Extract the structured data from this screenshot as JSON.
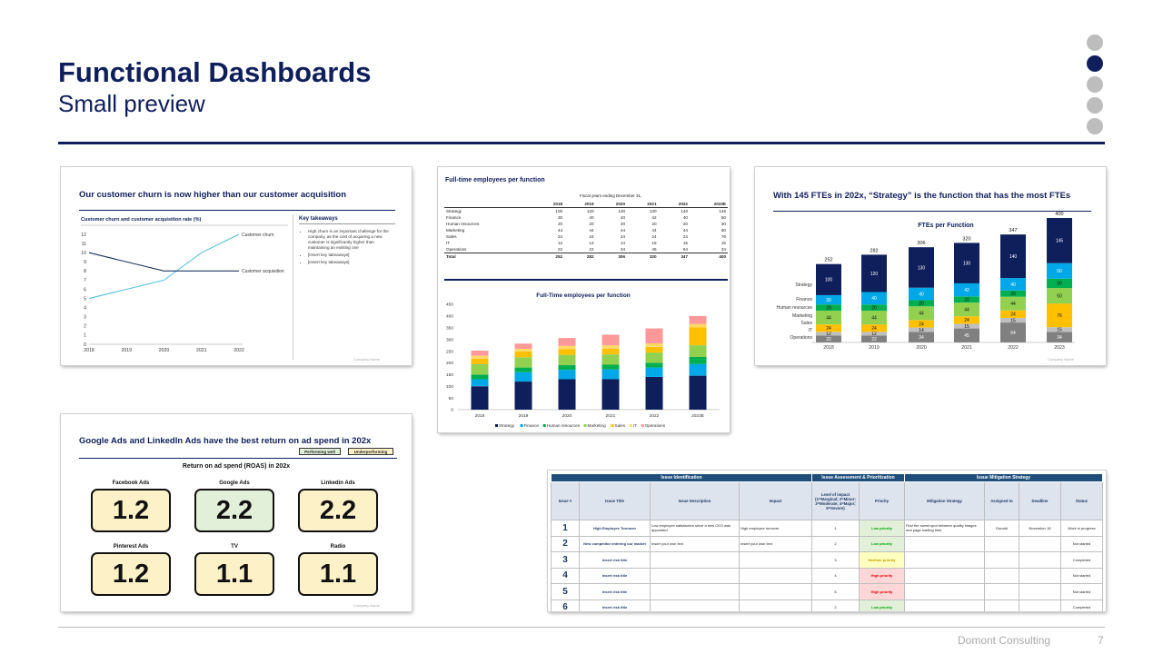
{
  "slide": {
    "title": "Functional Dashboards",
    "subtitle": "Small preview",
    "footer_company": "Domont Consulting",
    "page_number": "7",
    "nav_dots": 5,
    "active_dot": 1
  },
  "colors": {
    "navy": "#0f1f5c",
    "strategy": "#0f1f5c",
    "finance": "#00a8e8",
    "hr": "#00b050",
    "marketing": "#92d050",
    "sales": "#ffc000",
    "it": "#ffd966",
    "operations": "#ff9999",
    "operations_grey": "#808080",
    "it_grey": "#bfbfbf"
  },
  "thumb1": {
    "title": "Our customer churn is now higher than our customer acquisition",
    "chart_title": "Customer churn and customer acquisition rate (%)",
    "key_title": "Key takeaways",
    "takeaways": [
      "High churn is an important challenge for the company, as the cost of acquiring a new customer is significantly higher than maintaining an existing one",
      "[Insert key takeaways]",
      "[Insert key takeaways]"
    ],
    "company_name": "Company Name"
  },
  "thumb2": {
    "title": "Full-time employees per function",
    "fiscal_label": "Fiscal years ending December 31,",
    "columns": [
      "2018",
      "2019",
      "2020",
      "2021",
      "2022",
      "2023E"
    ],
    "rows": [
      {
        "label": "Strategy",
        "values": [
          "100",
          "120",
          "130",
          "130",
          "140",
          "145"
        ]
      },
      {
        "label": "Finance",
        "values": [
          "30",
          "40",
          "40",
          "42",
          "40",
          "50"
        ]
      },
      {
        "label": "Human resources",
        "values": [
          "20",
          "20",
          "20",
          "20",
          "20",
          "30"
        ]
      },
      {
        "label": "Marketing",
        "values": [
          "44",
          "44",
          "44",
          "44",
          "44",
          "50"
        ]
      },
      {
        "label": "Sales",
        "values": [
          "24",
          "24",
          "24",
          "24",
          "24",
          "76"
        ]
      },
      {
        "label": "IT",
        "values": [
          "12",
          "12",
          "14",
          "15",
          "15",
          "15"
        ]
      },
      {
        "label": "Operations",
        "values": [
          "22",
          "22",
          "34",
          "45",
          "64",
          "34"
        ]
      }
    ],
    "total": {
      "label": "Total",
      "values": [
        "252",
        "282",
        "306",
        "320",
        "347",
        "400"
      ]
    },
    "chart_title": "Full-Time employees per function"
  },
  "thumb3": {
    "title": "With 145 FTEs in 202x, “Strategy” is the function that has the most FTEs",
    "chart_title": "FTEs per Function",
    "row_labels": [
      "Strategy",
      "Finance",
      "Human resources",
      "Marketing",
      "Sales",
      "IT",
      "Operations"
    ],
    "company_name": "Company Name"
  },
  "thumb4": {
    "title": "Google Ads and LinkedIn Ads have the best return on ad spend in 202x",
    "legend_good": "Performing well",
    "legend_under": "Underperforming",
    "subtitle": "Return on ad spend (ROAS) in 202x",
    "tiles": [
      {
        "label": "Facebook Ads",
        "value": "1.2",
        "status": "under"
      },
      {
        "label": "Google Ads",
        "value": "2.2",
        "status": "good"
      },
      {
        "label": "Linkedin Ads",
        "value": "2.2",
        "status": "under"
      },
      {
        "label": "Pinterest Ads",
        "value": "1.2",
        "status": "under"
      },
      {
        "label": "TV",
        "value": "1.1",
        "status": "under"
      },
      {
        "label": "Radio",
        "value": "1.1",
        "status": "under"
      }
    ],
    "company_name": "Company Name"
  },
  "thumb5": {
    "groups": [
      "Issue Identification",
      "Issue Assessment & Prioritization",
      "Issue Mitigation Strategy"
    ],
    "headers": [
      "Issue #",
      "Issue Title",
      "Issue Description",
      "Impact",
      "Level of impact (1=Marginal; 2=Minor; 3=Moderate; 4=Major; 5=Severe)",
      "Priority",
      "Mitigation Strategy",
      "Assigned to",
      "Deadline",
      "Status"
    ],
    "rows": [
      {
        "num": "1",
        "title": "High Employee Turnover",
        "desc": "Low employee satisfaction since a new CEO was appointed",
        "impact": "High employee turnover",
        "level": "1",
        "priority": "Low priority",
        "pri": "low",
        "mitigation": "Find the sweet spot between quality images and page loading time",
        "assigned": "Donald",
        "deadline": "November 18",
        "status": "Work in progress"
      },
      {
        "num": "2",
        "title": "New competitor entering our market",
        "desc": "Insert your own text",
        "impact": "Insert your own text",
        "level": "2",
        "priority": "Low priority",
        "pri": "low",
        "mitigation": "",
        "assigned": "",
        "deadline": "",
        "status": "Not started"
      },
      {
        "num": "3",
        "title": "Insert risk title",
        "desc": "",
        "impact": "",
        "level": "3",
        "priority": "Medium priority",
        "pri": "med",
        "mitigation": "",
        "assigned": "",
        "deadline": "",
        "status": "Completed"
      },
      {
        "num": "4",
        "title": "Insert risk title",
        "desc": "",
        "impact": "",
        "level": "4",
        "priority": "High priority",
        "pri": "high",
        "mitigation": "",
        "assigned": "",
        "deadline": "",
        "status": "Not started"
      },
      {
        "num": "5",
        "title": "Insert risk title",
        "desc": "",
        "impact": "",
        "level": "5",
        "priority": "High priority",
        "pri": "high",
        "mitigation": "",
        "assigned": "",
        "deadline": "",
        "status": "Not started"
      },
      {
        "num": "6",
        "title": "Insert risk title",
        "desc": "",
        "impact": "",
        "level": "2",
        "priority": "Low priority",
        "pri": "low",
        "mitigation": "",
        "assigned": "",
        "deadline": "",
        "status": "Completed"
      }
    ]
  },
  "chart_data": [
    {
      "type": "line",
      "x": [
        2018,
        2019,
        2020,
        2021,
        2022
      ],
      "series": [
        {
          "name": "Customer churn",
          "values": [
            5,
            6,
            7,
            10,
            12
          ],
          "color": "#5bc0de"
        },
        {
          "name": "Customer acquisition",
          "values": [
            10,
            9,
            8,
            8,
            8
          ],
          "color": "#1f3864"
        }
      ],
      "ylim": [
        0,
        12
      ],
      "yticks": [
        0,
        1,
        2,
        3,
        4,
        5,
        6,
        7,
        8,
        9,
        10,
        11,
        12
      ],
      "legend": "line-end labels"
    },
    {
      "type": "bar",
      "stacked": true,
      "categories": [
        "2018",
        "2019",
        "2020",
        "2021",
        "2022",
        "2023E"
      ],
      "series": [
        {
          "name": "Strategy",
          "values": [
            100,
            120,
            130,
            130,
            140,
            145
          ]
        },
        {
          "name": "Finance",
          "values": [
            30,
            40,
            40,
            42,
            40,
            50
          ]
        },
        {
          "name": "Human resources",
          "values": [
            20,
            20,
            20,
            20,
            20,
            30
          ]
        },
        {
          "name": "Marketing",
          "values": [
            44,
            44,
            44,
            44,
            44,
            50
          ]
        },
        {
          "name": "Sales",
          "values": [
            24,
            24,
            24,
            24,
            24,
            76
          ]
        },
        {
          "name": "IT",
          "values": [
            12,
            12,
            14,
            15,
            15,
            15
          ]
        },
        {
          "name": "Operations",
          "values": [
            22,
            22,
            34,
            45,
            64,
            34
          ]
        }
      ],
      "ylim": [
        0,
        450
      ],
      "yticks": [
        0,
        50,
        100,
        150,
        200,
        250,
        300,
        350,
        400,
        450
      ],
      "legend": "bottom"
    },
    {
      "type": "bar",
      "stacked": true,
      "categories": [
        "2018",
        "2019",
        "2020",
        "2021",
        "2022",
        "2023"
      ],
      "totals": [
        252,
        282,
        306,
        320,
        347,
        400
      ],
      "series_order_bottom_up": [
        "Operations",
        "IT",
        "Sales",
        "Marketing",
        "Human resources",
        "Finance",
        "Strategy"
      ],
      "series": [
        {
          "name": "Operations",
          "values": [
            22,
            22,
            34,
            45,
            64,
            34
          ]
        },
        {
          "name": "IT",
          "values": [
            12,
            12,
            14,
            15,
            15,
            15
          ]
        },
        {
          "name": "Sales",
          "values": [
            24,
            24,
            24,
            24,
            24,
            76
          ]
        },
        {
          "name": "Marketing",
          "values": [
            44,
            44,
            44,
            44,
            44,
            50
          ]
        },
        {
          "name": "Human resources",
          "values": [
            20,
            20,
            20,
            20,
            20,
            30
          ]
        },
        {
          "name": "Finance",
          "values": [
            30,
            40,
            40,
            42,
            40,
            50
          ]
        },
        {
          "name": "Strategy",
          "values": [
            100,
            120,
            130,
            130,
            140,
            145
          ]
        }
      ],
      "legend": "left row labels"
    }
  ]
}
